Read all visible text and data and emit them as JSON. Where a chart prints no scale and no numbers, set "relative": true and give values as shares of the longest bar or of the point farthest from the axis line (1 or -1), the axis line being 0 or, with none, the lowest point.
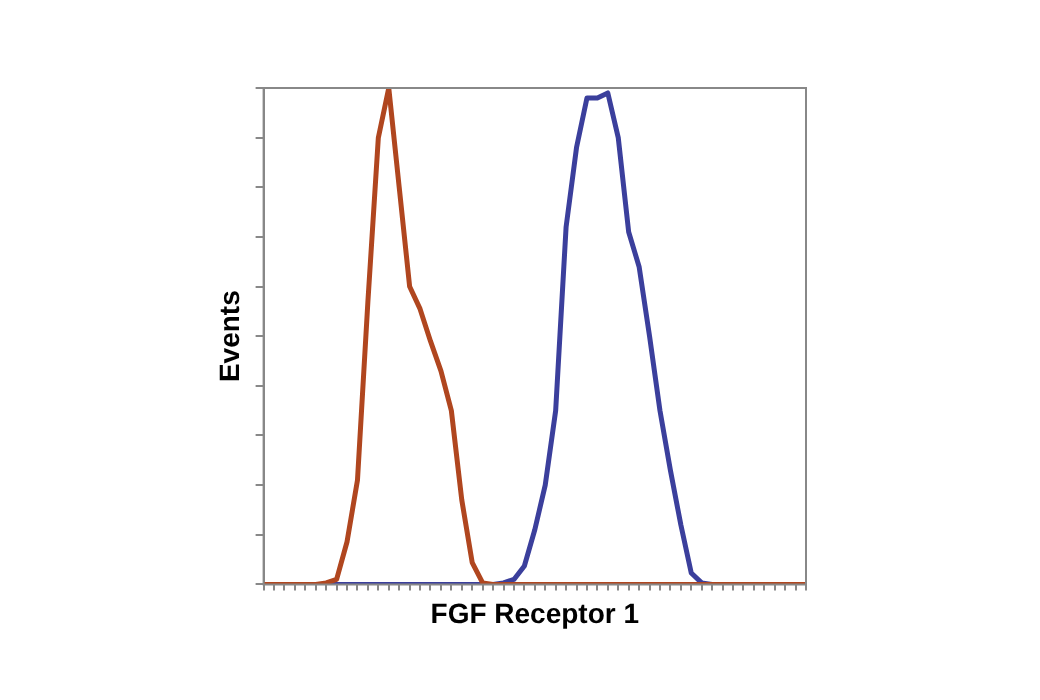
{
  "chart_data": {
    "type": "line",
    "relative": true,
    "xlabel": "FGF Receptor 1",
    "ylabel": "Events",
    "tick_labels": false,
    "grid": false,
    "legend": false,
    "marker": "none",
    "line_style": "solid",
    "categories": [
      null,
      null,
      null,
      null,
      null,
      null,
      null,
      null,
      null,
      null,
      null,
      null,
      null,
      null,
      null,
      null,
      null,
      null,
      null,
      null,
      null,
      null,
      null,
      null,
      null,
      null,
      null,
      null,
      null,
      null,
      null,
      null,
      null,
      null,
      null,
      null,
      null,
      null,
      null,
      null,
      null,
      null,
      null,
      null,
      null,
      null,
      null,
      null,
      null,
      null,
      null,
      null,
      null
    ],
    "series": [
      {
        "color": "#b0461f",
        "values": [
          0,
          0,
          0,
          0,
          0,
          0,
          0.003,
          0.01,
          0.086,
          0.21,
          0.57,
          0.9,
          1,
          0.8,
          0.6,
          0.555,
          0.49,
          0.43,
          0.35,
          0.17,
          0.044,
          0.003,
          0,
          0,
          0,
          0,
          0,
          0,
          0,
          0,
          0,
          0,
          0,
          0,
          0,
          0,
          0,
          0,
          0,
          0,
          0,
          0,
          0,
          0,
          0,
          0,
          0,
          0,
          0,
          0,
          0,
          0,
          0
        ]
      },
      {
        "color": "#3b3f9c",
        "values": [
          null,
          null,
          null,
          null,
          null,
          0,
          0,
          0,
          0,
          0,
          0,
          0,
          0,
          0,
          0,
          0,
          0,
          0,
          0,
          0,
          0,
          0,
          0,
          0.003,
          0.01,
          0.037,
          0.11,
          0.2,
          0.35,
          0.72,
          0.88,
          0.98,
          0.98,
          0.99,
          0.9,
          0.71,
          0.64,
          0.5,
          0.35,
          0.23,
          0.12,
          0.023,
          0.003,
          0,
          0,
          null,
          null,
          null,
          null,
          null,
          null,
          null,
          null
        ]
      }
    ]
  }
}
